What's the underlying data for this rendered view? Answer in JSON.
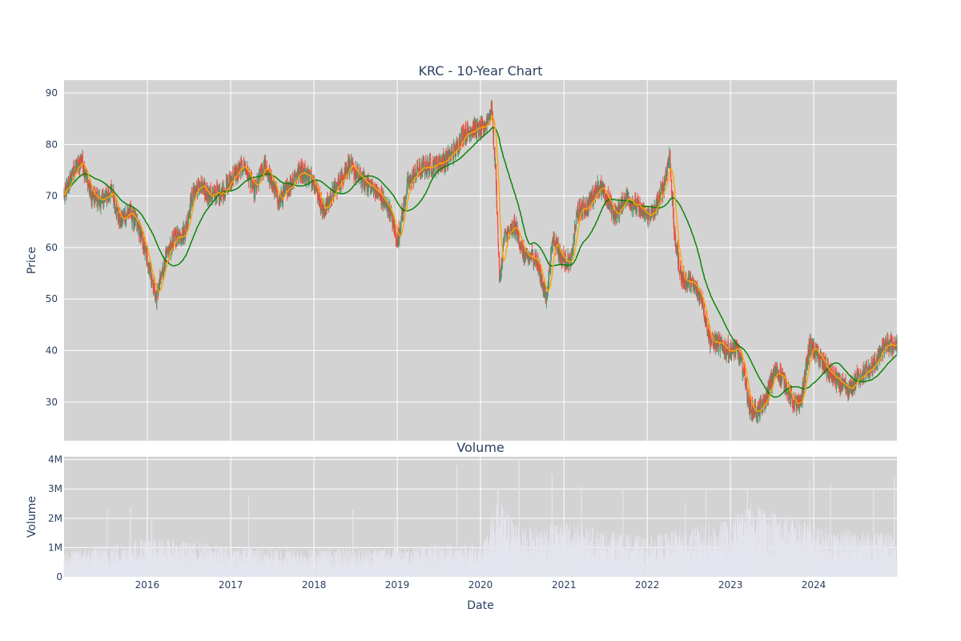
{
  "chart_data": [
    {
      "type": "candlestick",
      "title": "KRC - 10-Year Chart",
      "ylabel": "Price",
      "ylim": [
        22.5,
        92.5
      ],
      "yticks": [
        30,
        40,
        50,
        60,
        70,
        80,
        90
      ],
      "x_start": "2015-01-01",
      "x_end": "2024-12-31",
      "xticks": [
        "2016",
        "2017",
        "2018",
        "2019",
        "2020",
        "2021",
        "2022",
        "2023",
        "2024"
      ],
      "grid": true,
      "increasing_color": "#3d9970",
      "decreasing_color": "#ff4136",
      "close_anchors": [
        [
          "2015-01-01",
          70
        ],
        [
          "2015-02-15",
          75
        ],
        [
          "2015-03-20",
          77
        ],
        [
          "2015-05-01",
          70
        ],
        [
          "2015-06-15",
          69
        ],
        [
          "2015-08-01",
          71
        ],
        [
          "2015-09-01",
          65
        ],
        [
          "2015-10-15",
          67
        ],
        [
          "2015-12-01",
          63
        ],
        [
          "2016-01-10",
          56
        ],
        [
          "2016-02-10",
          50
        ],
        [
          "2016-03-15",
          57
        ],
        [
          "2016-05-01",
          62
        ],
        [
          "2016-06-15",
          63
        ],
        [
          "2016-07-15",
          70
        ],
        [
          "2016-08-15",
          72
        ],
        [
          "2016-10-01",
          70
        ],
        [
          "2016-12-01",
          71
        ],
        [
          "2017-01-15",
          74
        ],
        [
          "2017-03-01",
          76
        ],
        [
          "2017-04-15",
          71
        ],
        [
          "2017-06-01",
          76
        ],
        [
          "2017-08-01",
          69
        ],
        [
          "2017-09-15",
          72
        ],
        [
          "2017-11-01",
          75
        ],
        [
          "2018-01-01",
          73
        ],
        [
          "2018-02-10",
          67
        ],
        [
          "2018-04-01",
          71
        ],
        [
          "2018-06-01",
          76
        ],
        [
          "2018-08-01",
          73
        ],
        [
          "2018-10-01",
          71
        ],
        [
          "2018-12-01",
          67
        ],
        [
          "2019-01-01",
          61
        ],
        [
          "2019-02-15",
          72
        ],
        [
          "2019-04-01",
          75
        ],
        [
          "2019-06-01",
          76
        ],
        [
          "2019-08-01",
          77
        ],
        [
          "2019-09-15",
          79
        ],
        [
          "2019-10-15",
          82
        ],
        [
          "2019-12-01",
          83
        ],
        [
          "2020-01-15",
          83
        ],
        [
          "2020-02-20",
          87
        ],
        [
          "2020-03-10",
          72
        ],
        [
          "2020-03-25",
          53
        ],
        [
          "2020-04-15",
          62
        ],
        [
          "2020-06-01",
          64
        ],
        [
          "2020-07-15",
          58
        ],
        [
          "2020-09-01",
          58
        ],
        [
          "2020-10-15",
          50
        ],
        [
          "2020-11-15",
          62
        ],
        [
          "2020-12-20",
          58
        ],
        [
          "2021-02-01",
          57
        ],
        [
          "2021-03-01",
          67
        ],
        [
          "2021-04-15",
          68
        ],
        [
          "2021-06-01",
          72
        ],
        [
          "2021-07-15",
          69
        ],
        [
          "2021-08-15",
          66
        ],
        [
          "2021-10-01",
          70
        ],
        [
          "2021-11-15",
          68
        ],
        [
          "2022-01-01",
          66
        ],
        [
          "2022-02-01",
          67
        ],
        [
          "2022-03-15",
          72
        ],
        [
          "2022-04-10",
          78
        ],
        [
          "2022-05-01",
          62
        ],
        [
          "2022-06-01",
          54
        ],
        [
          "2022-07-15",
          53
        ],
        [
          "2022-08-30",
          50
        ],
        [
          "2022-10-01",
          42
        ],
        [
          "2022-11-15",
          41
        ],
        [
          "2023-01-01",
          40
        ],
        [
          "2023-02-01",
          40
        ],
        [
          "2023-03-01",
          36
        ],
        [
          "2023-03-25",
          29
        ],
        [
          "2023-05-01",
          28
        ],
        [
          "2023-06-01",
          30
        ],
        [
          "2023-07-15",
          36
        ],
        [
          "2023-08-15",
          35
        ],
        [
          "2023-10-01",
          30
        ],
        [
          "2023-11-01",
          29
        ],
        [
          "2023-12-15",
          41
        ],
        [
          "2024-01-20",
          39
        ],
        [
          "2024-03-01",
          36
        ],
        [
          "2024-04-15",
          34
        ],
        [
          "2024-06-01",
          32
        ],
        [
          "2024-07-15",
          35
        ],
        [
          "2024-09-01",
          36
        ],
        [
          "2024-10-15",
          39
        ],
        [
          "2024-11-15",
          41
        ],
        [
          "2024-12-31",
          41
        ]
      ],
      "ma_short_color": "#ffa500",
      "ma_long_color": "#008000"
    },
    {
      "type": "bar",
      "title": "Volume",
      "xlabel": "Date",
      "ylabel": "Volume",
      "ylim": [
        0,
        4100000
      ],
      "yticks": [
        0,
        1000000,
        2000000,
        3000000,
        4000000
      ],
      "ytick_labels": [
        "0",
        "1M",
        "2M",
        "3M",
        "4M"
      ],
      "bar_color": "#e5e5ef",
      "grid": true,
      "volume_anchors": [
        [
          "2015-01-01",
          600000
        ],
        [
          "2016-01-15",
          900000
        ],
        [
          "2017-01-01",
          700000
        ],
        [
          "2018-01-01",
          650000
        ],
        [
          "2019-01-01",
          700000
        ],
        [
          "2020-01-15",
          800000
        ],
        [
          "2020-03-20",
          1800000
        ],
        [
          "2020-07-01",
          1100000
        ],
        [
          "2021-01-01",
          1300000
        ],
        [
          "2021-06-01",
          1100000
        ],
        [
          "2022-01-01",
          900000
        ],
        [
          "2022-06-01",
          1100000
        ],
        [
          "2023-01-01",
          1300000
        ],
        [
          "2023-04-01",
          1700000
        ],
        [
          "2023-10-01",
          1400000
        ],
        [
          "2024-03-01",
          1100000
        ],
        [
          "2024-12-31",
          1000000
        ]
      ],
      "volume_spikes": [
        [
          "2015-07-10",
          2300000
        ],
        [
          "2015-10-20",
          2400000
        ],
        [
          "2016-01-20",
          2000000
        ],
        [
          "2017-03-20",
          2800000
        ],
        [
          "2018-06-20",
          2300000
        ],
        [
          "2018-12-21",
          1900000
        ],
        [
          "2019-09-20",
          3800000
        ],
        [
          "2020-03-18",
          3000000
        ],
        [
          "2020-06-19",
          4000000
        ],
        [
          "2020-11-10",
          3500000
        ],
        [
          "2021-03-19",
          3100000
        ],
        [
          "2021-09-17",
          3000000
        ],
        [
          "2022-06-17",
          2500000
        ],
        [
          "2022-09-16",
          3000000
        ],
        [
          "2023-03-17",
          3000000
        ],
        [
          "2023-12-15",
          3300000
        ],
        [
          "2024-03-15",
          3200000
        ],
        [
          "2024-09-20",
          3000000
        ],
        [
          "2024-12-20",
          3400000
        ]
      ]
    }
  ]
}
